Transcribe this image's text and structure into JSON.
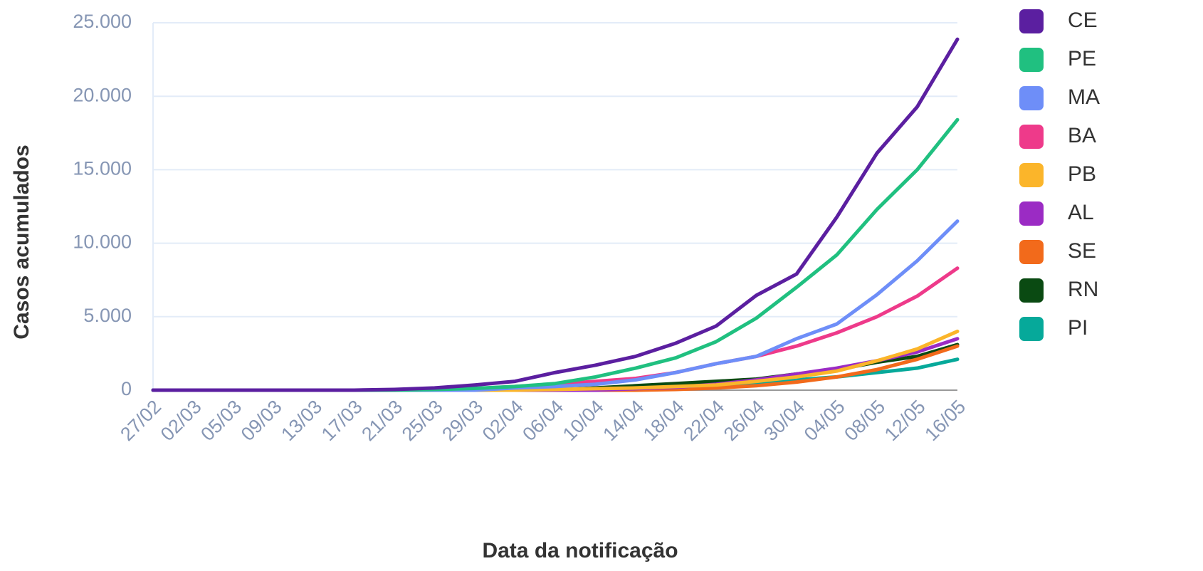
{
  "chart_data": {
    "type": "line",
    "x_label": "Data da notificação",
    "y_label": "Casos acumulados",
    "categories": [
      "27/02",
      "02/03",
      "05/03",
      "09/03",
      "13/03",
      "17/03",
      "21/03",
      "25/03",
      "29/03",
      "02/04",
      "06/04",
      "10/04",
      "14/04",
      "18/04",
      "22/04",
      "26/04",
      "30/04",
      "04/05",
      "08/05",
      "12/05",
      "16/05"
    ],
    "ylim": [
      0,
      25000
    ],
    "yticks": [
      0,
      {
        "value": 5000,
        "label": "5.000"
      },
      {
        "value": 10000,
        "label": "10.000"
      },
      {
        "value": 15000,
        "label": "15.000"
      },
      {
        "value": 20000,
        "label": "20.000"
      },
      {
        "value": 25000,
        "label": "25.000"
      }
    ],
    "grid": true,
    "legend": "right",
    "series": [
      {
        "name": "CE",
        "color": "#5b1fa0",
        "values": [
          0,
          0,
          0,
          0,
          0,
          0,
          50,
          150,
          350,
          600,
          1200,
          1700,
          2300,
          3200,
          4360,
          6450,
          7900,
          11770,
          16130,
          19280,
          23880
        ]
      },
      {
        "name": "PE",
        "color": "#20c080",
        "values": [
          0,
          0,
          0,
          0,
          0,
          0,
          0,
          50,
          120,
          250,
          450,
          900,
          1500,
          2200,
          3300,
          4900,
          7000,
          9200,
          12300,
          15000,
          18400
        ]
      },
      {
        "name": "MA",
        "color": "#6e8ef8",
        "values": [
          0,
          0,
          0,
          0,
          0,
          0,
          0,
          0,
          0,
          150,
          250,
          400,
          700,
          1200,
          1800,
          2300,
          3500,
          4500,
          6500,
          8800,
          11500
        ]
      },
      {
        "name": "BA",
        "color": "#ee3a8a",
        "values": [
          0,
          0,
          0,
          0,
          0,
          0,
          0,
          0,
          100,
          250,
          400,
          600,
          800,
          1200,
          1800,
          2300,
          3000,
          3900,
          5000,
          6400,
          8300
        ]
      },
      {
        "name": "PB",
        "color": "#fbb52a",
        "values": [
          0,
          0,
          0,
          0,
          0,
          0,
          0,
          0,
          0,
          0,
          50,
          100,
          150,
          250,
          350,
          600,
          900,
          1300,
          2000,
          2800,
          4000
        ]
      },
      {
        "name": "AL",
        "color": "#9b2bc4",
        "values": [
          0,
          0,
          0,
          0,
          0,
          0,
          0,
          0,
          0,
          0,
          0,
          0,
          100,
          200,
          400,
          700,
          1100,
          1500,
          2000,
          2600,
          3500
        ]
      },
      {
        "name": "SE",
        "color": "#f26a1b",
        "values": [
          0,
          0,
          0,
          0,
          0,
          0,
          0,
          0,
          0,
          0,
          0,
          0,
          0,
          50,
          150,
          300,
          550,
          900,
          1400,
          2100,
          3000
        ]
      },
      {
        "name": "RN",
        "color": "#0a4a12",
        "values": [
          0,
          0,
          0,
          0,
          0,
          0,
          0,
          0,
          0,
          0,
          0,
          150,
          300,
          450,
          600,
          750,
          1100,
          1400,
          1900,
          2300,
          3100
        ]
      },
      {
        "name": "PI",
        "color": "#06a99a",
        "values": [
          0,
          0,
          0,
          0,
          0,
          0,
          0,
          0,
          0,
          0,
          0,
          0,
          100,
          200,
          300,
          450,
          700,
          900,
          1200,
          1500,
          2100
        ]
      }
    ]
  }
}
